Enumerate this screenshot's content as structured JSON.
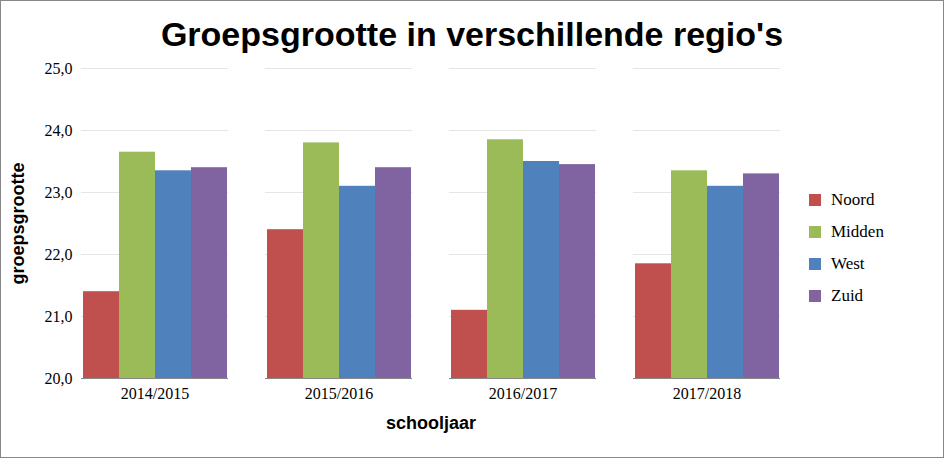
{
  "chart_data": {
    "type": "bar",
    "title": "Groepsgrootte in verschillende regio's",
    "x_label": "schooljaar",
    "y_label": "groepsgrootte",
    "categories": [
      "2014/2015",
      "2015/2016",
      "2016/2017",
      "2017/2018"
    ],
    "series": [
      {
        "name": "Noord",
        "color": "#c0504d",
        "values": [
          21.4,
          22.4,
          21.1,
          21.85
        ]
      },
      {
        "name": "Midden",
        "color": "#9bbb59",
        "values": [
          23.65,
          23.8,
          23.85,
          23.35
        ]
      },
      {
        "name": "West",
        "color": "#4f81bd",
        "values": [
          23.35,
          23.1,
          23.5,
          23.1
        ]
      },
      {
        "name": "Zuid",
        "color": "#8064a2",
        "values": [
          23.4,
          23.4,
          23.45,
          23.3
        ]
      }
    ],
    "ylim": [
      20,
      25
    ],
    "yticks": [
      {
        "value": 20,
        "label": "20,0"
      },
      {
        "value": 21,
        "label": "21,0"
      },
      {
        "value": 22,
        "label": "22,0"
      },
      {
        "value": 23,
        "label": "23,0"
      },
      {
        "value": 24,
        "label": "24,0"
      },
      {
        "value": 25,
        "label": "25,0"
      }
    ],
    "grid": true,
    "legend": "right"
  }
}
